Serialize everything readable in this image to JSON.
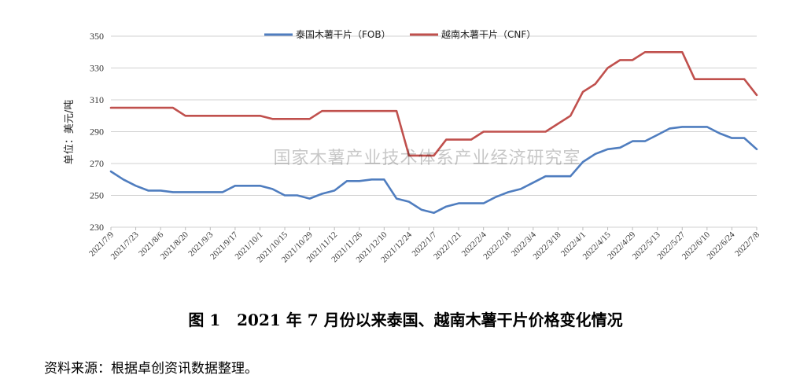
{
  "chart_data": {
    "type": "line",
    "ylabel": "单位：美元/吨",
    "ylim": [
      230,
      350
    ],
    "yticks": [
      230,
      250,
      270,
      290,
      310,
      330,
      350
    ],
    "grid": "horizontal",
    "legend_position": "top-center",
    "x_tick_labels": [
      "2021/7/9",
      "2021/7/23",
      "2021/8/6",
      "2021/8/20",
      "2021/9/3",
      "2021/9/17",
      "2021/10/1",
      "2021/10/15",
      "2021/10/29",
      "2021/11/12",
      "2021/11/26",
      "2021/12/10",
      "2021/12/24",
      "2022/1/7",
      "2022/1/21",
      "2022/2/4",
      "2022/2/18",
      "2022/3/4",
      "2022/3/18",
      "2022/4/1",
      "2022/4/15",
      "2022/4/29",
      "2022/5/13",
      "2022/5/27",
      "2022/6/10",
      "2022/6/24",
      "2022/7/8"
    ],
    "series": [
      {
        "name": "泰国木薯干片（FOB）",
        "color": "#4F7DBF",
        "values": [
          265,
          260,
          256,
          253,
          253,
          252,
          252,
          252,
          252,
          252,
          256,
          256,
          256,
          254,
          250,
          250,
          248,
          251,
          253,
          259,
          259,
          260,
          260,
          248,
          246,
          241,
          239,
          243,
          245,
          245,
          245,
          249,
          252,
          254,
          258,
          262,
          262,
          262,
          271,
          276,
          279,
          280,
          284,
          284,
          288,
          292,
          293,
          293,
          293,
          289,
          286,
          286,
          279
        ]
      },
      {
        "name": "越南木薯干片（CNF）",
        "color": "#C0504D",
        "values": [
          305,
          305,
          305,
          305,
          305,
          305,
          300,
          300,
          300,
          300,
          300,
          300,
          300,
          298,
          298,
          298,
          298,
          303,
          303,
          303,
          303,
          303,
          303,
          303,
          275,
          275,
          275,
          285,
          285,
          285,
          290,
          290,
          290,
          290,
          290,
          290,
          295,
          300,
          315,
          320,
          330,
          335,
          335,
          340,
          340,
          340,
          340,
          323,
          323,
          323,
          323,
          323,
          313
        ]
      }
    ]
  },
  "watermark": "国家木薯产业技术体系产业经济研究室",
  "caption": "图 1   2021 年 7 月份以来泰国、越南木薯干片价格变化情况",
  "source": "资料来源：根据卓创资讯数据整理。"
}
